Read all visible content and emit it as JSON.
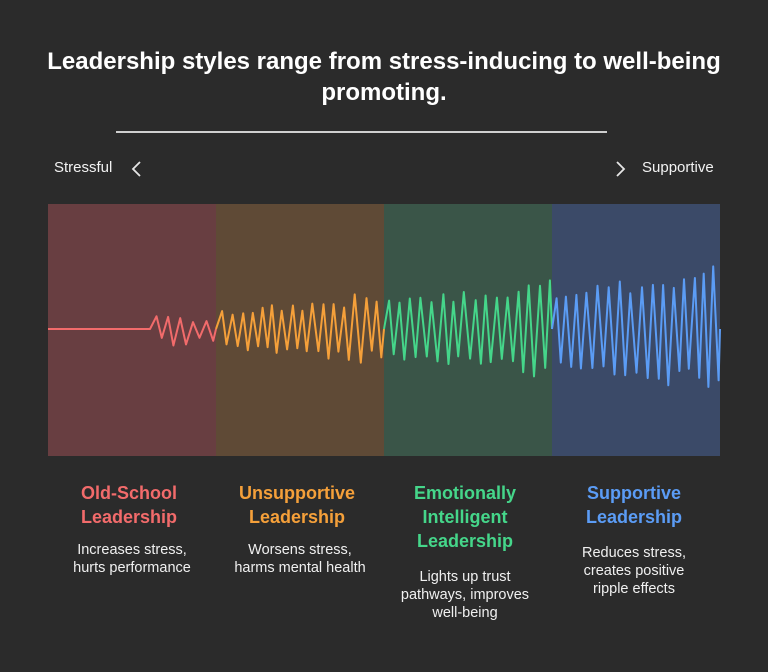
{
  "title": {
    "line1": "Leadership styles range from stress-inducing to well-being",
    "line2": "promoting."
  },
  "scale": {
    "left_label": "Stressful",
    "right_label": "Supportive",
    "left_icon": "chevron-left-icon",
    "right_icon": "chevron-right-icon"
  },
  "styles": [
    {
      "title_line1": "Old-School",
      "title_line2": "Leadership",
      "desc_line1": "Increases stress,",
      "desc_line2": "hurts performance",
      "color": "#f26b6b",
      "panel_color": "#683e41"
    },
    {
      "title_line1": "Unsupportive",
      "title_line2": "Leadership",
      "desc_line1": "Worsens stress,",
      "desc_line2": "harms mental health",
      "color": "#f5a03a",
      "panel_color": "#5f4a36"
    },
    {
      "title_line1": "Emotionally",
      "title_line2": "Intelligent",
      "title_line3": "Leadership",
      "desc_line1": "Lights up trust",
      "desc_line2": "pathways, improves",
      "desc_line3": "well-being",
      "color": "#45d68a",
      "panel_color": "#3a5548"
    },
    {
      "title_line1": "Supportive",
      "title_line2": "Leadership",
      "desc_line1": "Reduces stress,",
      "desc_line2": "creates positive",
      "desc_line3": "ripple effects",
      "color": "#5b9cf5",
      "panel_color": "#3b4a68"
    }
  ]
}
